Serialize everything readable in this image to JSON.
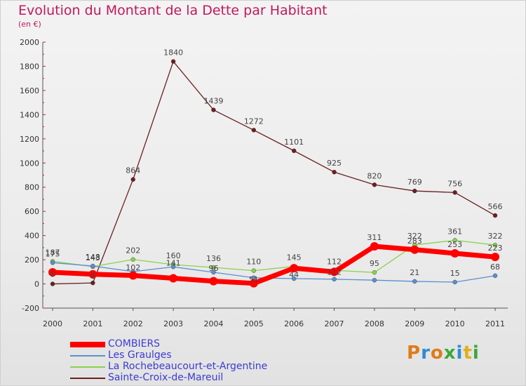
{
  "header": {
    "title": "Evolution du Montant de la Dette par Habitant",
    "subtitle": "(en €)"
  },
  "logo": {
    "text": "Proxiti",
    "colors": [
      "#e07b1a",
      "#2e8bd4",
      "#e07b1a",
      "#3aa83a",
      "#2e8bd4",
      "#e0b01a",
      "#3aa83a"
    ]
  },
  "chart_data": {
    "type": "line",
    "title": "Evolution du Montant de la Dette par Habitant",
    "subtitle": "(en €)",
    "xlabel": "",
    "ylabel": "",
    "x": [
      "2000",
      "2001",
      "2002",
      "2003",
      "2004",
      "2005",
      "2006",
      "2007",
      "2008",
      "2009",
      "2010",
      "2011"
    ],
    "ylim": [
      -200,
      2000
    ],
    "yticks": [
      -200,
      0,
      200,
      400,
      600,
      800,
      1000,
      1200,
      1400,
      1600,
      1800,
      2000
    ],
    "grid": false,
    "legend_position": "bottom-left",
    "series": [
      {
        "name": "COMBIERS",
        "color": "#ff0000",
        "labeled": false,
        "values": [
          96,
          80,
          70,
          47,
          23,
          5,
          130,
          100,
          311,
          283,
          253,
          223
        ]
      },
      {
        "name": "Les Graulges",
        "color": "#5b8fd0",
        "labeled": true,
        "values": [
          175,
          148,
          102,
          141,
          96,
          51,
          44,
          39,
          31,
          21,
          15,
          68
        ],
        "labels": [
          "",
          "",
          "",
          "",
          "",
          "",
          "",
          "",
          "",
          "21",
          "15",
          "68"
        ]
      },
      {
        "name": "La Rochebeaucourt-et-Argentine",
        "color": "#88d34f",
        "labeled": true,
        "values": [
          187,
          143,
          202,
          160,
          136,
          110,
          145,
          112,
          95,
          322,
          361,
          322
        ],
        "labels": [
          "187",
          "143",
          "202",
          "160",
          "136",
          "110",
          "145",
          "112",
          "95",
          "322",
          "361",
          "322"
        ]
      },
      {
        "name": "Sainte-Croix-de-Mareuil",
        "color": "#6b1f1f",
        "labeled": true,
        "values": [
          0,
          8,
          864,
          1840,
          1439,
          1272,
          1101,
          925,
          820,
          769,
          756,
          566
        ],
        "labels": [
          "",
          "",
          "864",
          "1840",
          "1439",
          "1272",
          "1101",
          "925",
          "820",
          "769",
          "756",
          "566"
        ]
      }
    ],
    "overlapping_labels_visible": [
      "175",
      "148",
      "102",
      "141",
      "96",
      "51",
      "44",
      "112",
      "283",
      "253",
      "223",
      "0",
      "8"
    ]
  }
}
